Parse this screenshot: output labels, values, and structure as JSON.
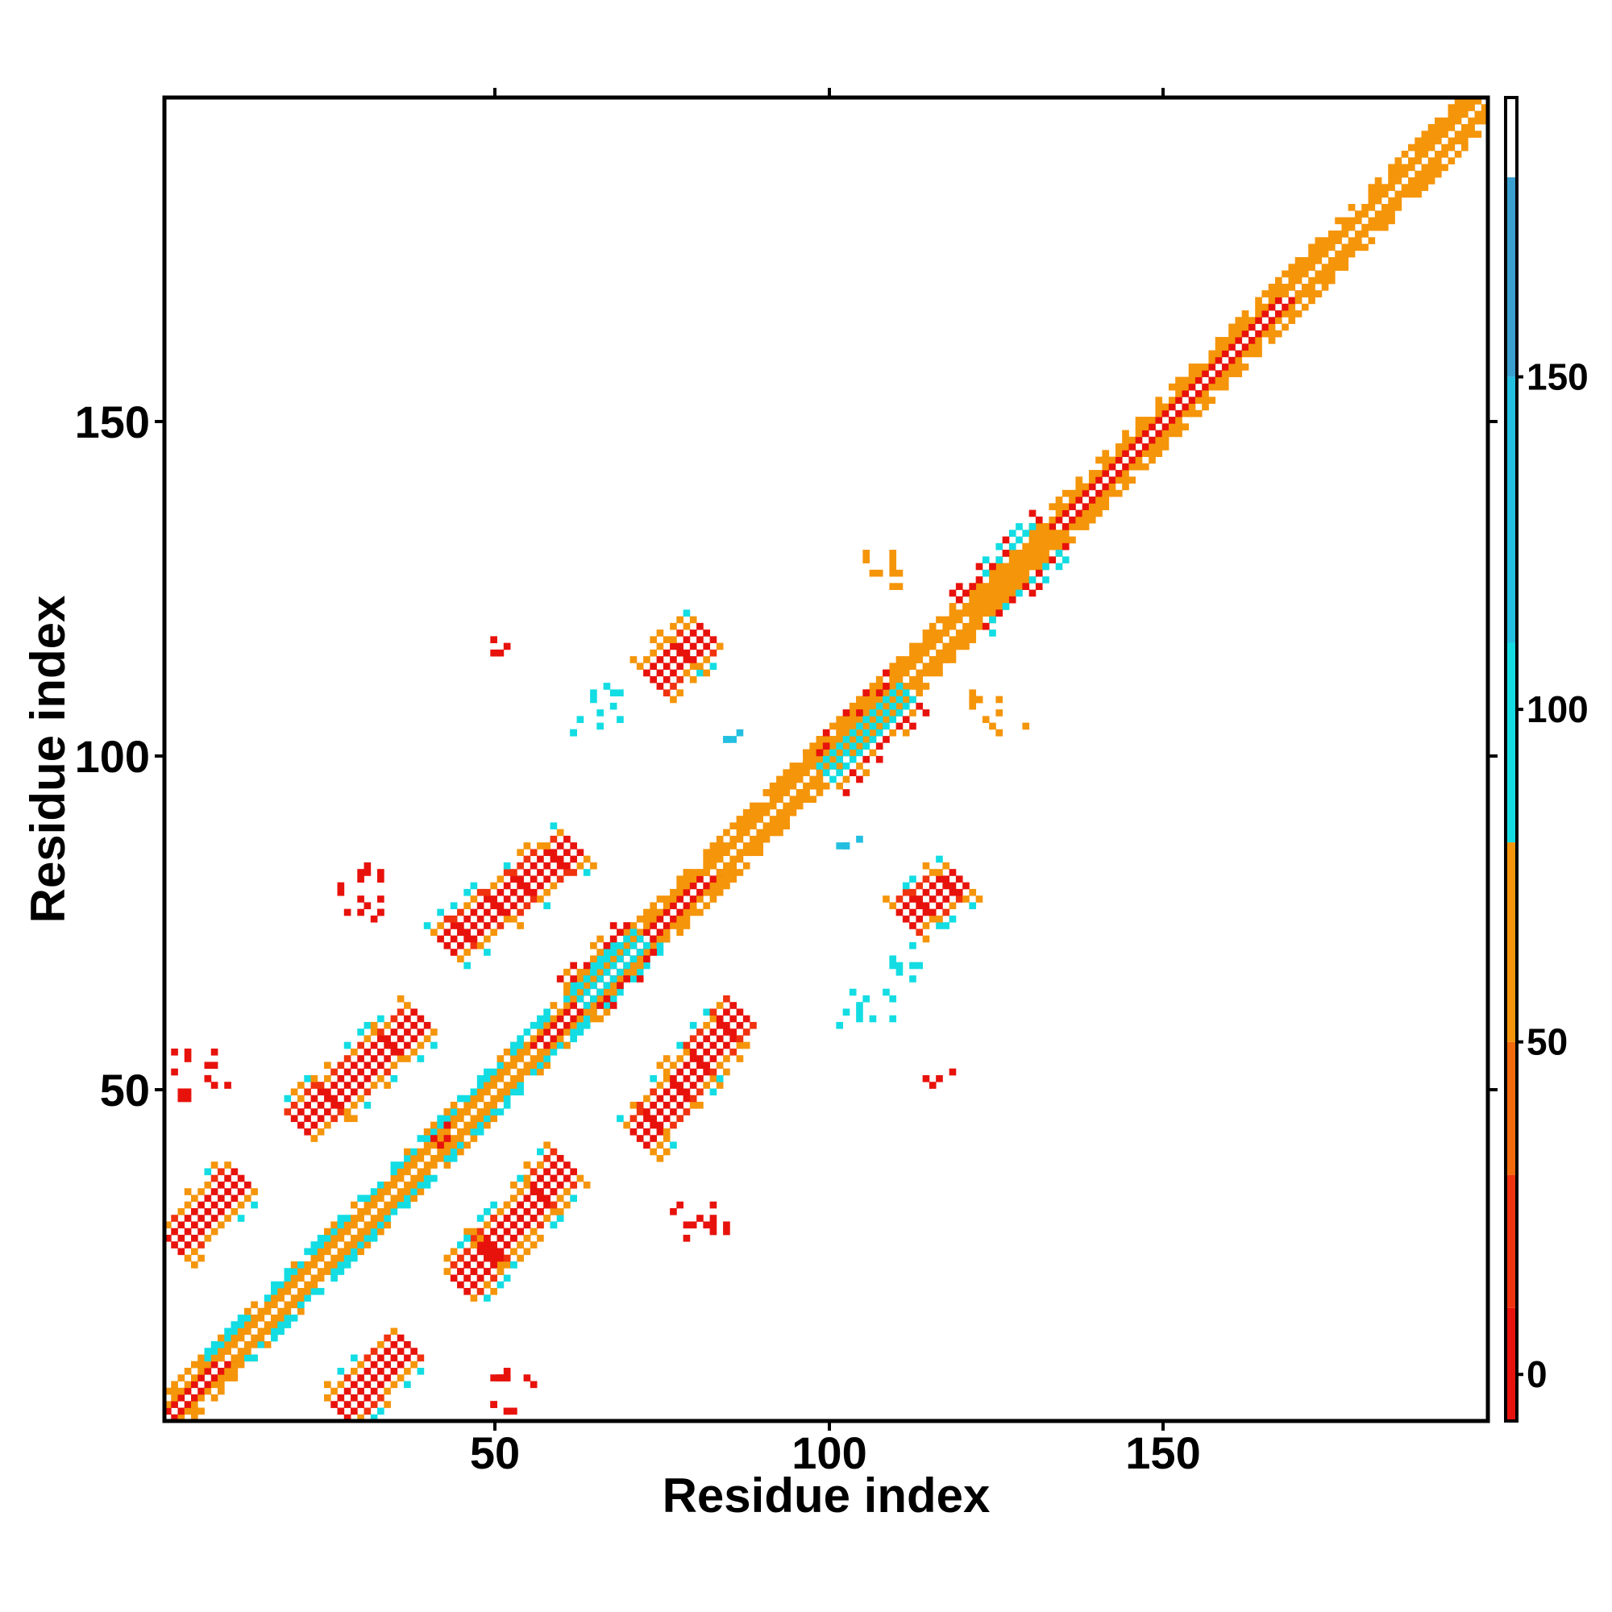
{
  "chart_data": {
    "type": "heatmap",
    "title": "",
    "xlabel": "Residue index",
    "ylabel": "Residue index",
    "xlim": [
      1,
      199
    ],
    "ylim": [
      1,
      199
    ],
    "xticks": [
      "50",
      "100",
      "150"
    ],
    "yticks": [
      "50",
      "100",
      "150"
    ],
    "grid": false,
    "colorbar": {
      "ticks": [
        "0",
        "50",
        "100",
        "150"
      ],
      "range": [
        -7,
        192
      ],
      "bands": [
        {
          "from": -7,
          "to": 10,
          "color": "#e8120c"
        },
        {
          "from": 10,
          "to": 30,
          "color": "#f0320e"
        },
        {
          "from": 30,
          "to": 50,
          "color": "#f26a0c"
        },
        {
          "from": 50,
          "to": 80,
          "color": "#f5950a"
        },
        {
          "from": 80,
          "to": 110,
          "color": "#13dde3"
        },
        {
          "from": 110,
          "to": 150,
          "color": "#23bfe0"
        },
        {
          "from": 150,
          "to": 180,
          "color": "#3a9fcf"
        },
        {
          "from": 180,
          "to": 192,
          "color": "#ffffff"
        }
      ]
    },
    "colors": {
      "red": "#e8120c",
      "redorange": "#f0320e",
      "orange": "#f5950a",
      "cyan": "#13dde3",
      "sky": "#23bfe0",
      "steel": "#3a9fcf"
    },
    "diagonal": {
      "from": [
        1,
        1
      ],
      "to": [
        199,
        199
      ],
      "segments": [
        {
          "start": 1,
          "end": 10,
          "colors": [
            "red",
            "orange"
          ]
        },
        {
          "start": 10,
          "end": 30,
          "colors": [
            "orange",
            "cyan"
          ]
        },
        {
          "start": 30,
          "end": 47,
          "colors": [
            "orange",
            "cyan"
          ]
        },
        {
          "start": 47,
          "end": 57,
          "colors": [
            "orange",
            "cyan"
          ]
        },
        {
          "start": 57,
          "end": 73,
          "colors": [
            "red",
            "cyan"
          ]
        },
        {
          "start": 73,
          "end": 83,
          "colors": [
            "red",
            "orange"
          ]
        },
        {
          "start": 83,
          "end": 95,
          "colors": [
            "cyan",
            "orange"
          ]
        },
        {
          "start": 95,
          "end": 115,
          "colors": [
            "cyan",
            "orange"
          ]
        },
        {
          "start": 115,
          "end": 135,
          "colors": [
            "cyan",
            "orange"
          ]
        },
        {
          "start": 135,
          "end": 170,
          "colors": [
            "red",
            "orange"
          ]
        },
        {
          "start": 170,
          "end": 199,
          "colors": [
            "cyan",
            "orange"
          ]
        }
      ]
    },
    "contact_regions": [
      {
        "type": "parallel",
        "x": [
          2,
          12
        ],
        "y": [
          27,
          37
        ],
        "color": "red"
      },
      {
        "type": "parallel",
        "x": [
          27,
          37
        ],
        "y": [
          2,
          12
        ],
        "color": "red"
      },
      {
        "type": "parallel",
        "x": [
          21,
          39
        ],
        "y": [
          45,
          61
        ],
        "color": "red"
      },
      {
        "type": "parallel",
        "x": [
          45,
          61
        ],
        "y": [
          21,
          39
        ],
        "color": "red"
      },
      {
        "type": "parallel",
        "x": [
          46,
          60
        ],
        "y": [
          22,
          38
        ],
        "color": "red"
      },
      {
        "type": "parallel",
        "x": [
          43,
          62
        ],
        "y": [
          72,
          87
        ],
        "color": "red"
      },
      {
        "type": "parallel",
        "x": [
          72,
          87
        ],
        "y": [
          43,
          62
        ],
        "color": "red"
      },
      {
        "type": "parallel",
        "x": [
          74,
          82
        ],
        "y": [
          112,
          119
        ],
        "color": "red"
      },
      {
        "type": "parallel",
        "x": [
          112,
          120
        ],
        "y": [
          76,
          82
        ],
        "color": "red"
      },
      {
        "type": "parallel",
        "x": [
          63,
          72
        ],
        "y": [
          64,
          73
        ],
        "color": "cyan"
      },
      {
        "type": "parallel",
        "x": [
          100,
          112
        ],
        "y": [
          98,
          110
        ],
        "color": "cyan"
      },
      {
        "type": "parallel",
        "x": [
          122,
          134
        ],
        "y": [
          122,
          134
        ],
        "color": "orange"
      },
      {
        "type": "scatter",
        "x": [
          106,
          112
        ],
        "y": [
          124,
          132
        ],
        "color": "orange"
      },
      {
        "type": "scatter",
        "x": [
          121,
          130
        ],
        "y": [
          103,
          110
        ],
        "color": "orange"
      },
      {
        "type": "scatter",
        "x": [
          61,
          70
        ],
        "y": [
          104,
          111
        ],
        "color": "cyan"
      },
      {
        "type": "scatter",
        "x": [
          85,
          88
        ],
        "y": [
          102,
          105
        ],
        "color": "sky"
      },
      {
        "type": "scatter",
        "x": [
          101,
          110
        ],
        "y": [
          60,
          65
        ],
        "color": "cyan"
      },
      {
        "type": "scatter",
        "x": [
          102,
          106
        ],
        "y": [
          86,
          88
        ],
        "color": "sky"
      },
      {
        "type": "scatter",
        "x": [
          110,
          114
        ],
        "y": [
          64,
          72
        ],
        "color": "cyan"
      },
      {
        "type": "scatter",
        "x": [
          2,
          10
        ],
        "y": [
          49,
          57
        ],
        "color": "red"
      },
      {
        "type": "scatter",
        "x": [
          27,
          34
        ],
        "y": [
          74,
          84
        ],
        "color": "red"
      },
      {
        "type": "scatter",
        "x": [
          49,
          57
        ],
        "y": [
          2,
          9
        ],
        "color": "red"
      },
      {
        "type": "scatter",
        "x": [
          77,
          85
        ],
        "y": [
          28,
          35
        ],
        "color": "red"
      },
      {
        "type": "scatter",
        "x": [
          115,
          120
        ],
        "y": [
          50,
          53
        ],
        "color": "red"
      },
      {
        "type": "scatter",
        "x": [
          50,
          52
        ],
        "y": [
          114,
          119
        ],
        "color": "red"
      },
      {
        "type": "scatter",
        "x": [
          40,
          44
        ],
        "y": [
          42,
          46
        ],
        "color": "red"
      }
    ]
  }
}
